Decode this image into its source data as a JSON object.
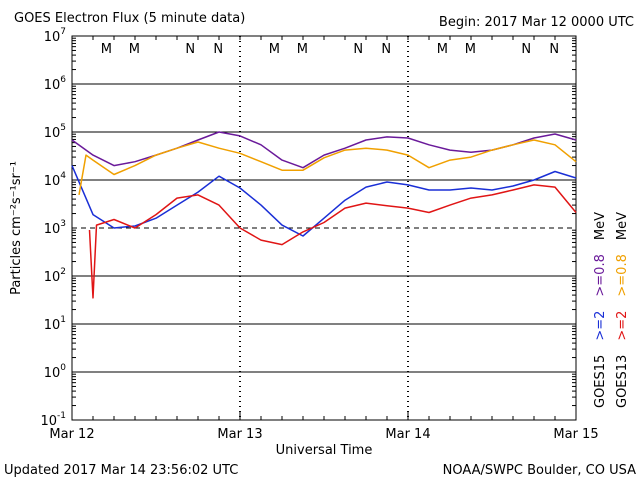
{
  "chart_data": {
    "type": "line",
    "title": "GOES Electron Flux (5 minute data)",
    "subtitle": "Begin: 2017 Mar 12 0000 UTC",
    "xlabel": "Universal Time",
    "ylabel": "Particles cm⁻²s⁻¹sr⁻¹",
    "footer_left": "Updated 2017 Mar 14 23:56:02 UTC",
    "footer_right": "NOAA/SWPC Boulder, CO USA",
    "log_y": true,
    "grid": true,
    "threshold": 1000,
    "xlim": [
      0,
      72
    ],
    "xticks": [
      {
        "value": 0,
        "label": "Mar 12"
      },
      {
        "value": 24,
        "label": "Mar 13"
      },
      {
        "value": 48,
        "label": "Mar 14"
      },
      {
        "value": 72,
        "label": "Mar 15"
      }
    ],
    "ylim": [
      0.1,
      10000000
    ],
    "yticks": [
      {
        "value": 0.1,
        "label": "10",
        "exponent": "-1"
      },
      {
        "value": 1,
        "label": "10",
        "exponent": "0"
      },
      {
        "value": 10,
        "label": "10",
        "exponent": "1"
      },
      {
        "value": 100,
        "label": "10",
        "exponent": "2"
      },
      {
        "value": 1000,
        "label": "10",
        "exponent": "3"
      },
      {
        "value": 10000,
        "label": "10",
        "exponent": "4"
      },
      {
        "value": 100000,
        "label": "10",
        "exponent": "5"
      },
      {
        "value": 1000000,
        "label": "10",
        "exponent": "6"
      },
      {
        "value": 10000000,
        "label": "10",
        "exponent": "7"
      }
    ],
    "unit": "MeV",
    "groups": [
      "GOES15",
      "GOES13"
    ],
    "markers": [
      {
        "x": 4.9,
        "label": "M",
        "color": "#e02020"
      },
      {
        "x": 8.9,
        "label": "M",
        "color": "#2030d0"
      },
      {
        "x": 16.9,
        "label": "N",
        "color": "#e02020"
      },
      {
        "x": 20.9,
        "label": "N",
        "color": "#2030d0"
      },
      {
        "x": 28.9,
        "label": "M",
        "color": "#e02020"
      },
      {
        "x": 32.9,
        "label": "M",
        "color": "#2030d0"
      },
      {
        "x": 40.9,
        "label": "N",
        "color": "#e02020"
      },
      {
        "x": 44.9,
        "label": "N",
        "color": "#2030d0"
      },
      {
        "x": 52.9,
        "label": "M",
        "color": "#e02020"
      },
      {
        "x": 56.9,
        "label": "M",
        "color": "#2030d0"
      },
      {
        "x": 64.9,
        "label": "N",
        "color": "#e02020"
      },
      {
        "x": 68.9,
        "label": "N",
        "color": "#2030d0"
      }
    ],
    "series": [
      {
        "name": ">=2",
        "group": 0,
        "color": "#1a2fd6",
        "x": [
          0,
          3,
          6,
          9,
          12,
          15,
          18,
          21,
          24,
          27,
          30,
          33,
          36,
          39,
          42,
          45,
          48,
          51,
          54,
          57,
          60,
          63,
          66,
          69,
          72
        ],
        "values": [
          20000,
          1900,
          1000,
          1100,
          1600,
          3000,
          5600,
          12000,
          6800,
          3000,
          1150,
          680,
          1600,
          3800,
          7100,
          9100,
          7900,
          6200,
          6200,
          6800,
          6200,
          7500,
          10000,
          15000,
          11000
        ]
      },
      {
        "name": ">=0.8",
        "group": 0,
        "color": "#6a1a9a",
        "x": [
          0,
          3,
          6,
          9,
          12,
          15,
          18,
          21,
          24,
          27,
          30,
          33,
          36,
          39,
          42,
          45,
          48,
          51,
          54,
          57,
          60,
          63,
          66,
          69,
          72
        ],
        "values": [
          68000,
          33000,
          20000,
          24000,
          33000,
          46000,
          68000,
          100000,
          83000,
          54000,
          26000,
          18000,
          33000,
          46000,
          68000,
          79000,
          75000,
          54000,
          42000,
          38000,
          42000,
          54000,
          75000,
          91000,
          68000
        ]
      },
      {
        "name": ">=2",
        "group": 1,
        "color": "#e01515",
        "x": [
          2.5,
          3,
          3.5,
          6,
          9,
          12,
          15,
          18,
          21,
          24,
          27,
          30,
          33,
          36,
          39,
          42,
          45,
          48,
          51,
          54,
          57,
          60,
          63,
          66,
          69,
          72
        ],
        "values": [
          910,
          35,
          1150,
          1500,
          1000,
          1900,
          4200,
          4900,
          3000,
          1000,
          560,
          450,
          830,
          1300,
          2600,
          3300,
          2900,
          2600,
          2100,
          3000,
          4200,
          4900,
          6200,
          7900,
          7100,
          2100
        ]
      },
      {
        "name": ">=0.8",
        "group": 1,
        "color": "#f0a000",
        "x": [
          1,
          2,
          3,
          6,
          9,
          12,
          15,
          18,
          21,
          24,
          27,
          30,
          33,
          36,
          39,
          42,
          45,
          48,
          51,
          54,
          57,
          60,
          63,
          66,
          69,
          72
        ],
        "values": [
          4900,
          33000,
          26000,
          13000,
          20000,
          33000,
          46000,
          62000,
          46000,
          36000,
          24000,
          16000,
          16000,
          29000,
          42000,
          46000,
          42000,
          33000,
          18000,
          26000,
          30000,
          42000,
          54000,
          68000,
          54000,
          24000
        ]
      }
    ]
  }
}
